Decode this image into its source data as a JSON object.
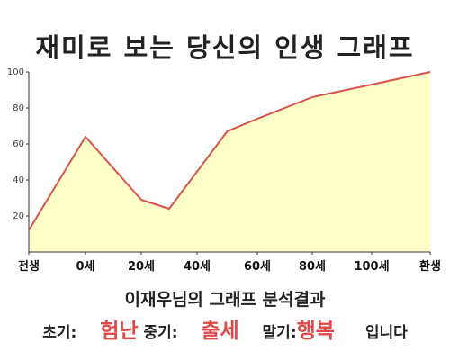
{
  "title": "재미로 보는 당신의 인생 그래프",
  "chart_data": {
    "type": "area",
    "x_labels": [
      "전생",
      "0세",
      "20세",
      "40세",
      "60세",
      "80세",
      "100세",
      "환생"
    ],
    "points": [
      {
        "x": "전생",
        "y": 12
      },
      {
        "x": "0세",
        "y": 64
      },
      {
        "x": "20세",
        "y": 29
      },
      {
        "x": "30세",
        "y": 24
      },
      {
        "x": "50세",
        "y": 67
      },
      {
        "x": "60세",
        "y": 74
      },
      {
        "x": "80세",
        "y": 86
      },
      {
        "x": "100세",
        "y": 93
      },
      {
        "x": "환생",
        "y": 100
      }
    ],
    "ylim": [
      0,
      100
    ],
    "yticks": [
      20,
      40,
      60,
      80,
      100
    ],
    "grid": false,
    "line_color": "#d9534f",
    "fill_color": "#ffffc8"
  },
  "summary": "이재우님의 그래프 분석결과",
  "result": {
    "early_label": "초기:",
    "early_value": "험난",
    "middle_label": "중기:",
    "middle_value": "출세",
    "late_label": "말기:",
    "late_value": "행복",
    "ending": "입니다"
  },
  "colors": {
    "highlight": "#e04848"
  }
}
